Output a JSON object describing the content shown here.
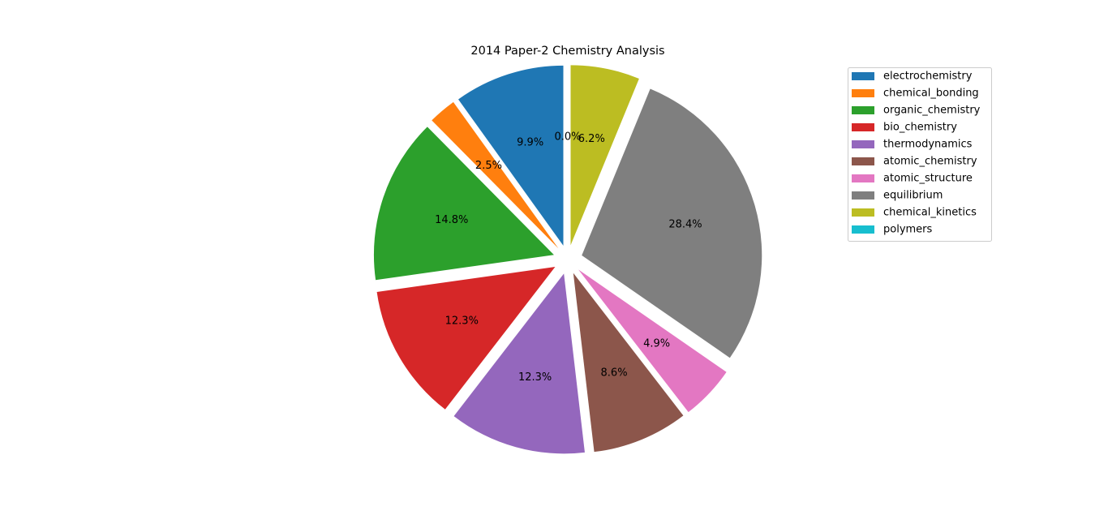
{
  "chart_data": {
    "type": "pie",
    "title": "2014 Paper-2 Chemistry Analysis",
    "categories": [
      "electrochemistry",
      "chemical_bonding",
      "organic_chemistry",
      "bio_chemistry",
      "thermodynamics",
      "atomic_chemistry",
      "atomic_structure",
      "equilibrium",
      "chemical_kinetics",
      "polymers"
    ],
    "values": [
      9.9,
      2.5,
      14.8,
      12.3,
      12.3,
      8.6,
      4.9,
      28.4,
      6.2,
      0.0
    ],
    "labels": [
      "9.9%",
      "2.5%",
      "14.8%",
      "12.3%",
      "12.3%",
      "8.6%",
      "4.9%",
      "28.4%",
      "6.2%",
      "0.0%"
    ],
    "colors": [
      "#1f77b4",
      "#ff7f0e",
      "#2ca02c",
      "#d62728",
      "#9467bd",
      "#8c564b",
      "#e377c2",
      "#7f7f7f",
      "#bcbd22",
      "#17becf"
    ],
    "start_angle": 90,
    "direction": "counterclockwise",
    "exploded": true,
    "legend_position": "top-right"
  }
}
